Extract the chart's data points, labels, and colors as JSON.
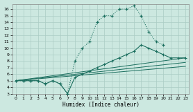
{
  "xlabel": "Humidex (Indice chaleur)",
  "bg_color": "#cce8e0",
  "grid_color": "#aaccC4",
  "line_color": "#1a6e5e",
  "xlim": [
    -0.5,
    23.5
  ],
  "ylim": [
    3,
    16.8
  ],
  "yticks": [
    3,
    4,
    5,
    6,
    7,
    8,
    9,
    10,
    11,
    12,
    13,
    14,
    15,
    16
  ],
  "xticks": [
    0,
    1,
    2,
    3,
    4,
    5,
    6,
    7,
    8,
    9,
    10,
    11,
    12,
    13,
    14,
    15,
    16,
    17,
    18,
    19,
    20,
    21,
    22,
    23
  ],
  "dotted_x": [
    0,
    1,
    2,
    3,
    4,
    5,
    6,
    7,
    8,
    9,
    10,
    11,
    12,
    13,
    14,
    15,
    16,
    17,
    18,
    19,
    20
  ],
  "dotted_y": [
    5,
    5,
    5,
    5,
    4.5,
    5,
    4.5,
    3,
    8,
    10,
    11,
    14,
    15,
    15,
    16,
    16,
    16.5,
    15,
    12.5,
    11,
    10.5
  ],
  "solid_x": [
    0,
    1,
    2,
    3,
    4,
    5,
    6,
    7,
    8,
    9,
    10,
    11,
    12,
    13,
    14,
    15,
    16,
    17,
    18,
    19,
    20,
    21,
    22,
    23
  ],
  "solid_y": [
    5,
    5,
    5,
    5,
    4.5,
    5,
    4.5,
    3,
    5.5,
    6,
    6.5,
    7,
    7.5,
    8,
    8.5,
    9,
    9.5,
    10.5,
    10,
    9.5,
    9,
    8.5,
    8.5,
    8.5
  ],
  "line1_x": [
    0,
    23
  ],
  "line1_y": [
    5,
    8.5
  ],
  "line2_x": [
    0,
    23
  ],
  "line2_y": [
    5,
    7.8
  ],
  "line3_x": [
    0,
    23
  ],
  "line3_y": [
    5,
    7.2
  ]
}
